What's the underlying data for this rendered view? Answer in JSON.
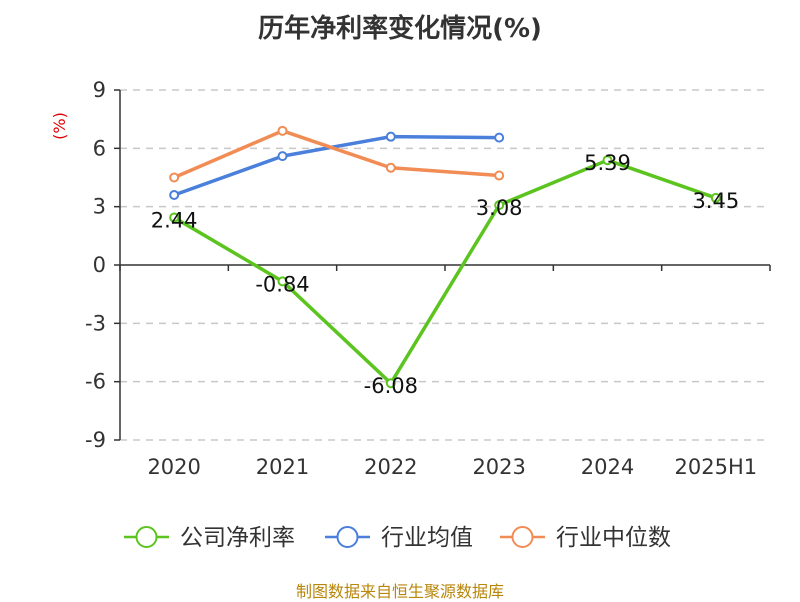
{
  "title": "历年净利率变化情况(%)",
  "source": "制图数据来自恒生聚源数据库",
  "chart_data": {
    "type": "line",
    "title": "历年净利率变化情况(%)",
    "unit_label": "(%)",
    "categories": [
      "2020",
      "2021",
      "2022",
      "2023",
      "2024",
      "2025H1"
    ],
    "ylim": [
      -9,
      9
    ],
    "yticks": [
      9,
      6,
      3,
      0,
      -3,
      -6,
      -9
    ],
    "grid": true,
    "legend_position": "bottom",
    "series": [
      {
        "name": "公司净利率",
        "color": "#5cc41f",
        "values": [
          2.44,
          -0.84,
          -6.08,
          3.08,
          5.39,
          3.45
        ],
        "show_labels": true
      },
      {
        "name": "行业均值",
        "color": "#4a7fdb",
        "values": [
          3.6,
          5.6,
          6.6,
          6.55,
          null,
          null
        ],
        "show_labels": false
      },
      {
        "name": "行业中位数",
        "color": "#f28c55",
        "values": [
          4.5,
          6.9,
          5.0,
          4.6,
          null,
          null
        ],
        "show_labels": false
      }
    ]
  }
}
